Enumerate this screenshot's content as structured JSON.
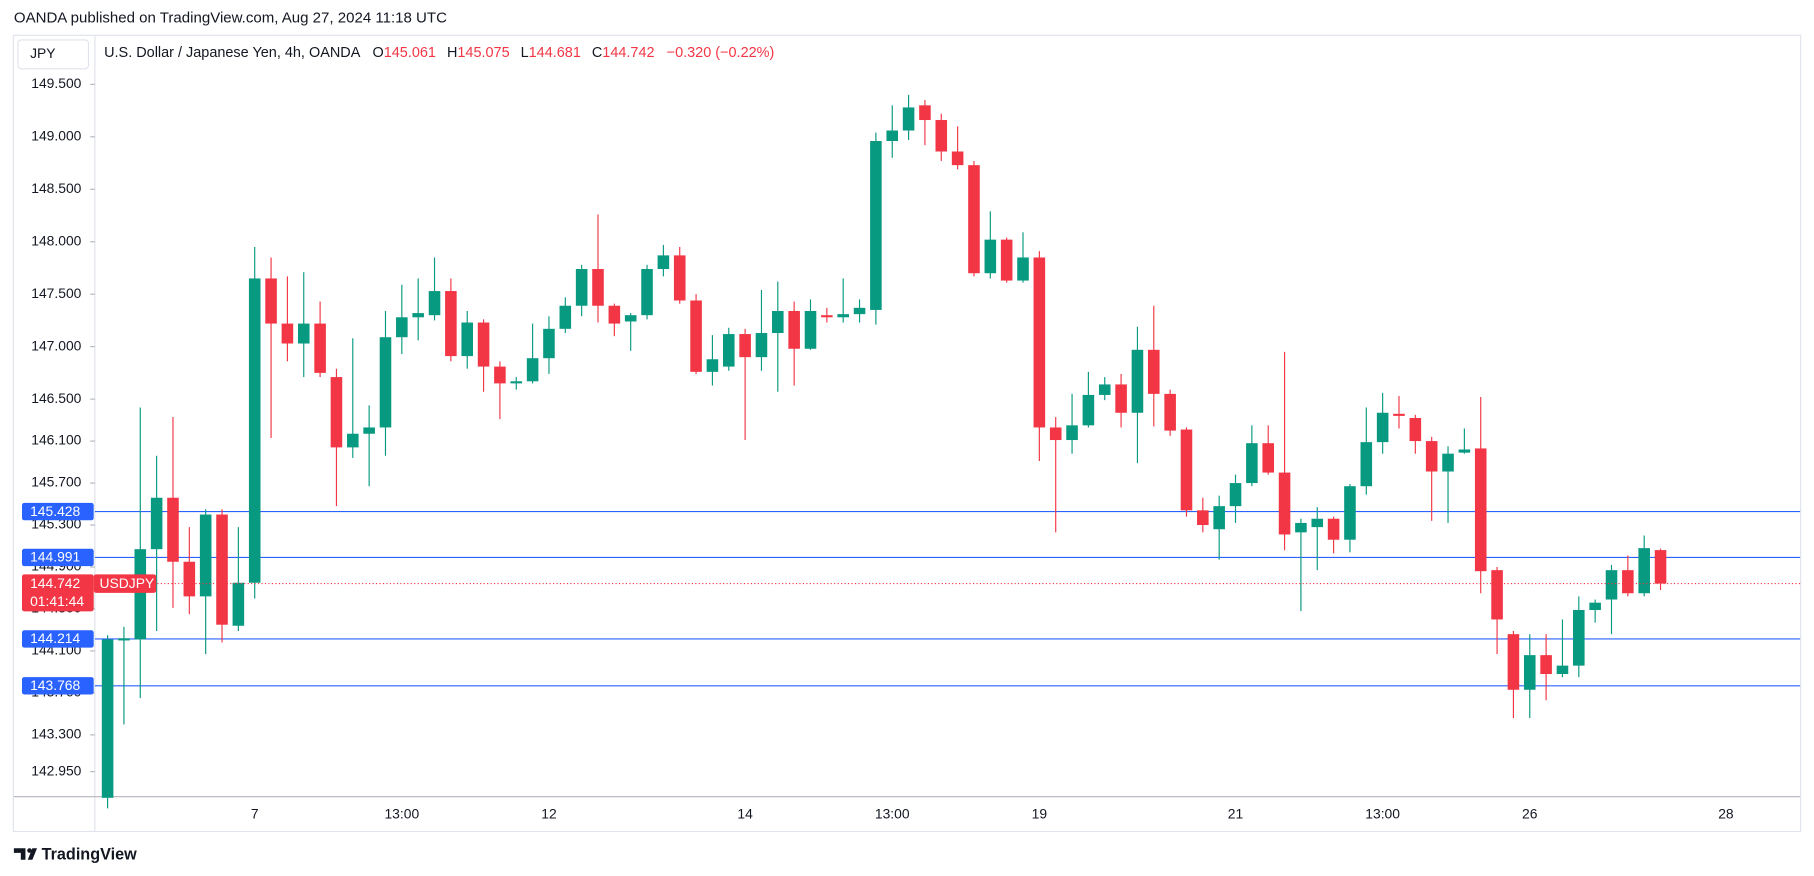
{
  "chart_data": {
    "type": "candlestick",
    "header": "OANDA published on TradingView.com, Aug 27, 2024 11:18 UTC",
    "currency": "JPY",
    "title": "U.S. Dollar / Japanese Yen, 4h, OANDA",
    "symbol": "USDJPY",
    "ohlc_prefixes": [
      "O",
      "H",
      "L",
      "C"
    ],
    "change": "−0.320 (−0.22%)",
    "countdown": "01:41:44",
    "brand": "TradingView",
    "up_color": "#089981",
    "down_color": "#f23645",
    "level_color": "#2962ff",
    "grid": false,
    "categories": [
      null,
      null,
      null,
      null,
      null,
      null,
      null,
      null,
      null,
      "7",
      null,
      null,
      null,
      null,
      null,
      null,
      null,
      null,
      "13:00",
      null,
      null,
      null,
      null,
      null,
      null,
      null,
      null,
      "12",
      null,
      null,
      null,
      null,
      null,
      null,
      null,
      null,
      null,
      null,
      null,
      "14",
      null,
      null,
      null,
      null,
      null,
      null,
      null,
      null,
      "13:00",
      null,
      null,
      null,
      null,
      null,
      null,
      null,
      null,
      "19",
      null,
      null,
      null,
      null,
      null,
      null,
      null,
      null,
      null,
      null,
      null,
      "21",
      null,
      null,
      null,
      null,
      null,
      null,
      null,
      null,
      "13:00",
      null,
      null,
      null,
      null,
      null,
      null,
      null,
      null,
      "26",
      null,
      null,
      null,
      null,
      null,
      null,
      null,
      null,
      null,
      null,
      null,
      "28"
    ],
    "open": [
      142.7,
      144.2,
      144.21,
      145.07,
      145.56,
      144.95,
      144.62,
      145.4,
      144.34,
      144.75,
      147.65,
      147.22,
      147.03,
      147.22,
      146.71,
      146.04,
      146.17,
      146.23,
      147.09,
      147.28,
      147.3,
      147.53,
      146.91,
      147.23,
      146.81,
      146.65,
      146.67,
      146.89,
      147.17,
      147.39,
      147.74,
      147.39,
      147.24,
      147.3,
      147.74,
      147.87,
      147.44,
      146.76,
      146.81,
      147.12,
      146.9,
      147.13,
      147.34,
      146.98,
      147.3,
      147.28,
      147.31,
      147.35,
      148.96,
      149.06,
      149.3,
      149.16,
      148.86,
      148.73,
      147.7,
      148.02,
      147.63,
      147.85,
      146.23,
      146.11,
      146.25,
      146.54,
      146.64,
      146.37,
      146.97,
      146.55,
      146.21,
      145.44,
      145.26,
      145.48,
      145.7,
      146.08,
      145.8,
      145.23,
      145.28,
      145.36,
      145.16,
      145.67,
      146.09,
      146.36,
      146.32,
      146.1,
      145.81,
      145.99,
      146.03,
      144.87,
      144.26,
      143.73,
      144.06,
      143.88,
      143.96,
      144.49,
      144.59,
      144.87,
      144.65,
      145.061,
      null,
      null,
      null,
      null
    ],
    "high": [
      144.25,
      144.33,
      146.42,
      145.96,
      146.33,
      145.28,
      145.45,
      145.45,
      145.28,
      147.95,
      147.85,
      147.67,
      147.71,
      147.43,
      146.79,
      147.08,
      146.44,
      147.34,
      147.59,
      147.65,
      147.85,
      147.65,
      147.34,
      147.26,
      146.86,
      146.71,
      147.22,
      147.29,
      147.47,
      147.78,
      148.26,
      147.41,
      147.32,
      147.78,
      147.97,
      147.95,
      147.5,
      147.11,
      147.18,
      147.17,
      147.54,
      147.62,
      147.43,
      147.45,
      147.37,
      147.65,
      147.45,
      149.04,
      149.3,
      149.4,
      149.35,
      149.22,
      149.1,
      148.77,
      148.29,
      148.04,
      148.09,
      147.91,
      146.33,
      146.55,
      146.76,
      146.71,
      146.74,
      147.19,
      147.39,
      146.59,
      146.23,
      145.56,
      145.58,
      145.78,
      146.25,
      146.25,
      146.95,
      145.36,
      145.47,
      145.38,
      145.69,
      146.42,
      146.56,
      146.53,
      146.35,
      146.14,
      146.05,
      146.22,
      146.52,
      144.9,
      144.29,
      144.26,
      144.26,
      144.4,
      144.62,
      144.59,
      144.92,
      145.01,
      145.2,
      145.075,
      null,
      null,
      null,
      null
    ],
    "low": [
      142.6,
      143.4,
      143.65,
      144.29,
      144.51,
      144.45,
      144.07,
      144.18,
      144.29,
      144.6,
      146.13,
      146.86,
      146.71,
      146.71,
      145.48,
      145.94,
      145.67,
      145.96,
      146.93,
      147.06,
      147.25,
      146.86,
      146.79,
      146.57,
      146.31,
      146.59,
      146.65,
      146.74,
      147.13,
      147.29,
      147.23,
      147.1,
      146.96,
      147.26,
      147.67,
      147.41,
      146.74,
      146.63,
      146.77,
      146.11,
      146.77,
      146.57,
      146.63,
      146.97,
      147.23,
      147.23,
      147.23,
      147.21,
      148.8,
      148.97,
      148.92,
      148.77,
      148.69,
      147.67,
      147.65,
      147.61,
      147.61,
      145.91,
      145.23,
      145.98,
      146.23,
      146.49,
      146.23,
      145.89,
      146.24,
      146.15,
      145.38,
      145.23,
      144.97,
      145.32,
      145.67,
      145.78,
      145.06,
      144.48,
      144.87,
      145.03,
      145.04,
      145.59,
      145.98,
      146.22,
      145.98,
      145.34,
      145.32,
      145.98,
      144.65,
      144.07,
      143.46,
      143.46,
      143.63,
      143.85,
      143.85,
      144.37,
      144.26,
      144.62,
      144.62,
      144.681,
      null,
      null,
      null,
      null
    ],
    "close": [
      144.21,
      144.22,
      145.07,
      145.56,
      144.95,
      144.62,
      145.4,
      144.35,
      144.75,
      147.65,
      147.22,
      147.03,
      147.22,
      146.75,
      146.04,
      146.17,
      146.23,
      147.09,
      147.28,
      147.32,
      147.53,
      146.91,
      147.23,
      146.81,
      146.65,
      146.67,
      146.89,
      147.17,
      147.39,
      147.74,
      147.39,
      147.22,
      147.3,
      147.74,
      147.87,
      147.44,
      146.76,
      146.88,
      147.12,
      146.9,
      147.13,
      147.34,
      146.98,
      147.34,
      147.28,
      147.31,
      147.37,
      148.96,
      149.06,
      149.28,
      149.16,
      148.86,
      148.73,
      147.7,
      148.02,
      147.63,
      147.85,
      146.23,
      146.11,
      146.25,
      146.54,
      146.64,
      146.37,
      146.97,
      146.55,
      146.2,
      145.44,
      145.3,
      145.48,
      145.7,
      146.08,
      145.8,
      145.21,
      145.32,
      145.36,
      145.16,
      145.67,
      146.09,
      146.37,
      146.34,
      146.1,
      145.81,
      145.98,
      146.02,
      144.86,
      144.4,
      143.73,
      144.06,
      143.88,
      143.96,
      144.49,
      144.56,
      144.87,
      144.65,
      145.08,
      144.742,
      null,
      null,
      null,
      null
    ],
    "levels": [
      145.428,
      144.991,
      144.214,
      143.768
    ],
    "ylim": [
      142.716,
      149.962
    ],
    "yticks": [
      {
        "value": 149.5,
        "label": "149.500"
      },
      {
        "value": 149,
        "label": "149.000"
      },
      {
        "value": 148.5,
        "label": "148.500"
      },
      {
        "value": 148,
        "label": "148.000"
      },
      {
        "value": 147.5,
        "label": "147.500"
      },
      {
        "value": 147,
        "label": "147.000"
      },
      {
        "value": 146.5,
        "label": "146.500"
      },
      {
        "value": 146.1,
        "label": "146.100"
      },
      {
        "value": 145.7,
        "label": "145.700"
      },
      {
        "value": 145.3,
        "label": "145.300"
      },
      {
        "value": 144.9,
        "label": "144.900"
      },
      {
        "value": 144.5,
        "label": "144.500"
      },
      {
        "value": 144.1,
        "label": "144.100"
      },
      {
        "value": 143.7,
        "label": "143.700"
      },
      {
        "value": 143.3,
        "label": "143.300"
      },
      {
        "value": 142.95,
        "label": "142.950"
      }
    ]
  }
}
